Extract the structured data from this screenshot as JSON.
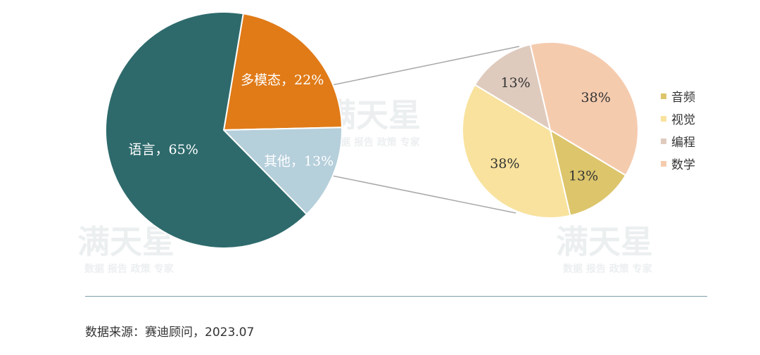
{
  "chart_data": [
    {
      "type": "pie",
      "categories": [
        "多模态",
        "其他",
        "语言"
      ],
      "values": [
        22,
        13,
        65
      ],
      "labels": [
        "多模态，22%",
        "其他，13%",
        "语言，65%"
      ],
      "colors": [
        "#e07b18",
        "#b5cfdb",
        "#2e6a6c"
      ]
    },
    {
      "type": "pie",
      "categories": [
        "音频",
        "视觉",
        "编程",
        "数学"
      ],
      "values": [
        13,
        38,
        13,
        38
      ],
      "labels": [
        "13%",
        "38%",
        "13%",
        "38%"
      ],
      "colors": [
        "#dcc56b",
        "#f8e29d",
        "#dfcbbe",
        "#f5cbae"
      ],
      "legend": {
        "position": "right",
        "items": [
          "音频",
          "视觉",
          "编程",
          "数学"
        ],
        "colors": [
          "#dcc56b",
          "#f8e29d",
          "#dfcbbe",
          "#f5cbae"
        ]
      }
    }
  ],
  "watermark": {
    "logo": "满天星",
    "slogan": "数据 报告 政策 专家"
  },
  "footer": {
    "source": "数据来源：赛迪顾问，2023.07"
  },
  "colors": {
    "divider": "#7a9ea4",
    "connector": "#a9a9a9"
  }
}
